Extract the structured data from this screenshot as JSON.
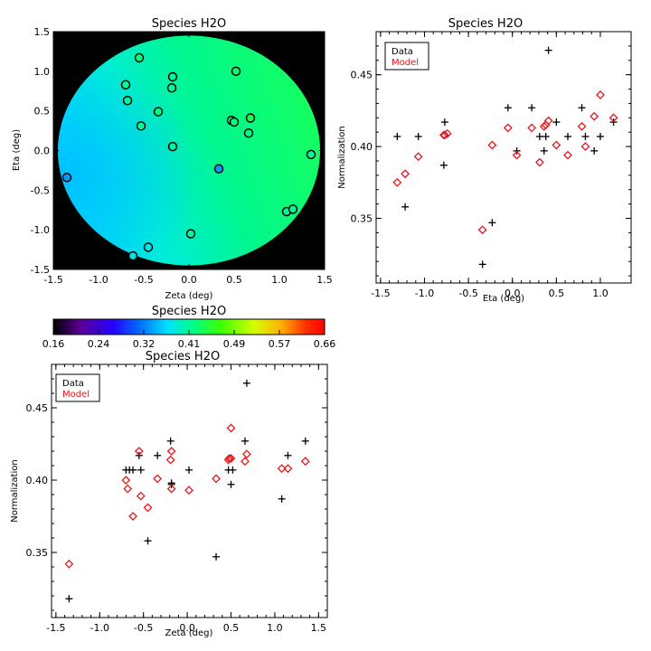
{
  "colors": {
    "data_marker": "#000000",
    "model_marker": "#e8161b",
    "map_background": "#000000",
    "axis": "#000000"
  },
  "colorbar": {
    "title": "Species H2O",
    "range": [
      0.16,
      0.66
    ],
    "tick_labels": [
      "0.16",
      "0.24",
      "0.32",
      "0.41",
      "0.49",
      "0.57",
      "0.66"
    ],
    "colormap": "rainbow"
  },
  "chart_data": [
    {
      "type": "heatmap",
      "title": "Species H2O",
      "xlabel": "Zeta (deg)",
      "ylabel": "Eta (deg)",
      "xlim": [
        -1.5,
        1.5
      ],
      "ylim": [
        -1.5,
        1.5
      ],
      "xticks": [
        "-1.5",
        "-1.0",
        "-0.5",
        "0.0",
        "0.5",
        "1.0",
        "1.5"
      ],
      "yticks": [
        "-1.5",
        "-1.0",
        "-0.5",
        "0.0",
        "0.5",
        "1.0",
        "1.5"
      ],
      "field_radius_deg": 1.45,
      "field_value_range": [
        0.35,
        0.44
      ],
      "stars": [
        {
          "x": -0.55,
          "y": 1.17,
          "v": 0.42
        },
        {
          "x": -0.7,
          "y": 0.83,
          "v": 0.41
        },
        {
          "x": -0.18,
          "y": 0.93,
          "v": 0.41
        },
        {
          "x": 0.52,
          "y": 1.0,
          "v": 0.43
        },
        {
          "x": -0.19,
          "y": 0.79,
          "v": 0.41
        },
        {
          "x": -0.68,
          "y": 0.63,
          "v": 0.41
        },
        {
          "x": -0.34,
          "y": 0.49,
          "v": 0.42
        },
        {
          "x": 0.47,
          "y": 0.38,
          "v": 0.42
        },
        {
          "x": 0.5,
          "y": 0.36,
          "v": 0.42
        },
        {
          "x": 0.68,
          "y": 0.41,
          "v": 0.44
        },
        {
          "x": -0.53,
          "y": 0.31,
          "v": 0.41
        },
        {
          "x": 0.66,
          "y": 0.22,
          "v": 0.42
        },
        {
          "x": -0.18,
          "y": 0.05,
          "v": 0.41
        },
        {
          "x": 1.35,
          "y": -0.05,
          "v": 0.41
        },
        {
          "x": 0.33,
          "y": -0.23,
          "v": 0.34
        },
        {
          "x": -1.35,
          "y": -0.34,
          "v": 0.34
        },
        {
          "x": 1.08,
          "y": -0.77,
          "v": 0.41
        },
        {
          "x": 1.15,
          "y": -0.74,
          "v": 0.41
        },
        {
          "x": 0.02,
          "y": -1.05,
          "v": 0.41
        },
        {
          "x": -0.45,
          "y": -1.22,
          "v": 0.38
        },
        {
          "x": -0.62,
          "y": -1.33,
          "v": 0.38
        }
      ]
    },
    {
      "type": "scatter",
      "title": "Species H2O",
      "xlabel": "Eta (deg)",
      "ylabel": "Normalization",
      "xlim": [
        -1.55,
        1.35
      ],
      "ylim": [
        0.305,
        0.48
      ],
      "xticks": [
        "-1.5",
        "-1.0",
        "-0.5",
        "0.0",
        "0.5",
        "1.0"
      ],
      "xtick_values": [
        -1.5,
        -1.0,
        -0.5,
        0.0,
        0.5,
        1.0
      ],
      "yticks": [
        "0.35",
        "0.40",
        "0.45"
      ],
      "ytick_values": [
        0.35,
        0.4,
        0.45
      ],
      "legend": {
        "position": "top-left",
        "entries": [
          "Data",
          "Model"
        ]
      },
      "series": [
        {
          "name": "Data",
          "marker": "plus",
          "points": [
            [
              -1.31,
              0.407
            ],
            [
              -1.22,
              0.358
            ],
            [
              -1.07,
              0.407
            ],
            [
              -0.77,
              0.417
            ],
            [
              -0.78,
              0.387
            ],
            [
              -0.34,
              0.318
            ],
            [
              -0.23,
              0.347
            ],
            [
              -0.05,
              0.427
            ],
            [
              0.05,
              0.397
            ],
            [
              0.22,
              0.427
            ],
            [
              0.31,
              0.407
            ],
            [
              0.36,
              0.397
            ],
            [
              0.38,
              0.407
            ],
            [
              0.41,
              0.467
            ],
            [
              0.5,
              0.417
            ],
            [
              0.63,
              0.407
            ],
            [
              0.79,
              0.427
            ],
            [
              0.83,
              0.407
            ],
            [
              0.93,
              0.397
            ],
            [
              1.0,
              0.407
            ],
            [
              1.15,
              0.417
            ]
          ]
        },
        {
          "name": "Model",
          "marker": "diamond",
          "points": [
            [
              -1.31,
              0.375
            ],
            [
              -1.22,
              0.381
            ],
            [
              -1.07,
              0.393
            ],
            [
              -0.78,
              0.408
            ],
            [
              -0.77,
              0.408
            ],
            [
              -0.74,
              0.409
            ],
            [
              -0.34,
              0.342
            ],
            [
              -0.23,
              0.401
            ],
            [
              -0.05,
              0.413
            ],
            [
              0.05,
              0.394
            ],
            [
              0.22,
              0.413
            ],
            [
              0.31,
              0.389
            ],
            [
              0.36,
              0.414
            ],
            [
              0.38,
              0.415
            ],
            [
              0.41,
              0.418
            ],
            [
              0.5,
              0.401
            ],
            [
              0.63,
              0.394
            ],
            [
              0.79,
              0.414
            ],
            [
              0.83,
              0.4
            ],
            [
              0.93,
              0.421
            ],
            [
              1.0,
              0.436
            ],
            [
              1.15,
              0.42
            ]
          ]
        }
      ]
    },
    {
      "type": "scatter",
      "title": "Species H2O",
      "xlabel": "Zeta (deg)",
      "ylabel": "Normalization",
      "xlim": [
        -1.55,
        1.6
      ],
      "ylim": [
        0.305,
        0.48
      ],
      "xticks": [
        "-1.5",
        "-1.0",
        "-0.5",
        "0.0",
        "0.5",
        "1.0",
        "1.5"
      ],
      "xtick_values": [
        -1.5,
        -1.0,
        -0.5,
        0.0,
        0.5,
        1.0,
        1.5
      ],
      "yticks": [
        "0.35",
        "0.40",
        "0.45"
      ],
      "ytick_values": [
        0.35,
        0.4,
        0.45
      ],
      "legend": {
        "position": "top-left",
        "entries": [
          "Data",
          "Model"
        ]
      },
      "series": [
        {
          "name": "Data",
          "marker": "plus",
          "points": [
            [
              -1.35,
              0.318
            ],
            [
              -0.7,
              0.407
            ],
            [
              -0.66,
              0.407
            ],
            [
              -0.62,
              0.407
            ],
            [
              -0.55,
              0.417
            ],
            [
              -0.53,
              0.407
            ],
            [
              -0.45,
              0.358
            ],
            [
              -0.34,
              0.417
            ],
            [
              -0.19,
              0.427
            ],
            [
              -0.18,
              0.397
            ],
            [
              -0.18,
              0.398
            ],
            [
              0.02,
              0.407
            ],
            [
              0.33,
              0.347
            ],
            [
              0.47,
              0.407
            ],
            [
              0.5,
              0.397
            ],
            [
              0.52,
              0.407
            ],
            [
              0.66,
              0.427
            ],
            [
              0.68,
              0.467
            ],
            [
              1.08,
              0.387
            ],
            [
              1.15,
              0.417
            ],
            [
              1.35,
              0.427
            ]
          ]
        },
        {
          "name": "Model",
          "marker": "diamond",
          "points": [
            [
              -1.35,
              0.342
            ],
            [
              -0.7,
              0.4
            ],
            [
              -0.68,
              0.394
            ],
            [
              -0.62,
              0.375
            ],
            [
              -0.55,
              0.42
            ],
            [
              -0.53,
              0.389
            ],
            [
              -0.45,
              0.381
            ],
            [
              -0.34,
              0.401
            ],
            [
              -0.19,
              0.414
            ],
            [
              -0.18,
              0.42
            ],
            [
              -0.18,
              0.394
            ],
            [
              0.02,
              0.393
            ],
            [
              0.33,
              0.401
            ],
            [
              0.47,
              0.414
            ],
            [
              0.48,
              0.415
            ],
            [
              0.5,
              0.415
            ],
            [
              0.5,
              0.436
            ],
            [
              0.66,
              0.413
            ],
            [
              0.68,
              0.418
            ],
            [
              1.08,
              0.408
            ],
            [
              1.15,
              0.408
            ],
            [
              1.35,
              0.413
            ]
          ]
        }
      ]
    }
  ]
}
